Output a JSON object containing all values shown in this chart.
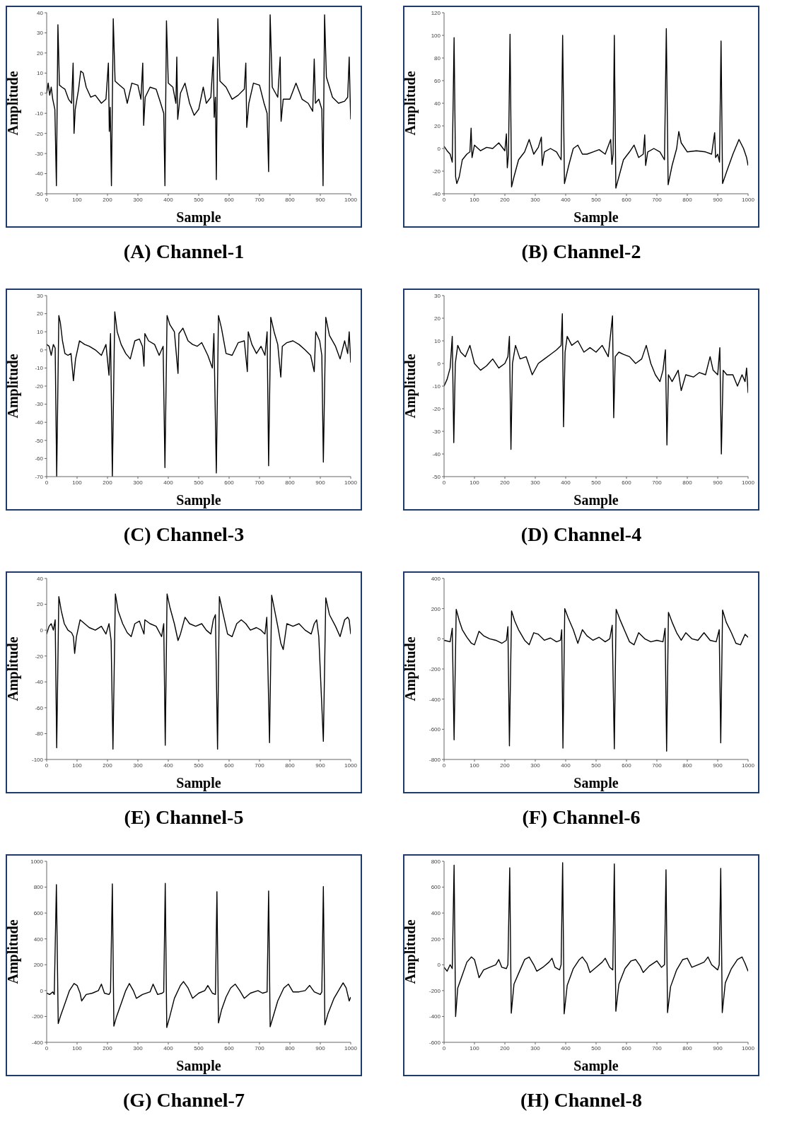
{
  "chart_data": [
    {
      "type": "line",
      "title": "(A) Channel-1",
      "xlabel": "Sample",
      "ylabel": "Amplitude",
      "color": "#000000",
      "xlim": [
        0,
        1000
      ],
      "xticks": [
        0,
        100,
        200,
        300,
        400,
        500,
        600,
        700,
        800,
        900,
        1000
      ],
      "ylim": [
        -50,
        40
      ],
      "yticks": [
        -50,
        -40,
        -30,
        -20,
        -10,
        0,
        10,
        20,
        30,
        40
      ],
      "x": [
        0,
        5,
        10,
        15,
        20,
        27,
        32,
        37,
        42,
        50,
        60,
        72,
        82,
        87,
        90,
        94,
        105,
        112,
        120,
        130,
        145,
        160,
        180,
        195,
        203,
        206,
        209,
        213,
        219,
        225,
        240,
        255,
        265,
        280,
        300,
        310,
        316,
        319,
        324,
        340,
        360,
        375,
        385,
        389,
        394,
        400,
        415,
        425,
        428,
        431,
        440,
        455,
        470,
        485,
        500,
        515,
        525,
        540,
        548,
        551,
        555,
        558,
        563,
        570,
        590,
        610,
        630,
        650,
        655,
        658,
        665,
        680,
        700,
        715,
        725,
        730,
        735,
        742,
        760,
        768,
        771,
        778,
        800,
        820,
        840,
        860,
        875,
        880,
        884,
        895,
        905,
        909,
        914,
        920,
        940,
        960,
        980,
        990,
        995,
        998,
        1000
      ],
      "values": [
        0,
        5,
        -1,
        3,
        -3,
        -8,
        -46,
        34,
        4,
        3,
        2,
        -3,
        -5,
        15,
        -20,
        -8,
        2,
        11,
        10,
        3,
        -2,
        -1,
        -5,
        -3,
        15,
        -19,
        -7,
        -46,
        37,
        6,
        4,
        2,
        -5,
        5,
        4,
        -3,
        15,
        -16,
        -2,
        3,
        2,
        -5,
        -10,
        -46,
        36,
        5,
        3,
        -5,
        18,
        -13,
        0,
        5,
        -5,
        -11,
        -8,
        3,
        -5,
        -2,
        18,
        -12,
        -2,
        -43,
        37,
        6,
        3,
        -3,
        -1,
        2,
        15,
        -17,
        -5,
        5,
        4,
        -5,
        -10,
        -39,
        39,
        3,
        -2,
        18,
        -14,
        -3,
        -3,
        5,
        -3,
        -5,
        -9,
        17,
        -5,
        -3,
        -8,
        -46,
        39,
        8,
        -2,
        -5,
        -4,
        -2,
        18,
        -2,
        -13
      ]
    },
    {
      "type": "line",
      "title": "(B) Channel-2",
      "xlabel": "Sample",
      "ylabel": "Amplitude",
      "color": "#000000",
      "xlim": [
        0,
        1000
      ],
      "xticks": [
        0,
        100,
        200,
        300,
        400,
        500,
        600,
        700,
        800,
        900,
        1000
      ],
      "ylim": [
        -40,
        120
      ],
      "yticks": [
        -40,
        -20,
        0,
        20,
        40,
        60,
        80,
        100,
        120
      ],
      "x": [
        0,
        10,
        20,
        27,
        33,
        38,
        42,
        50,
        60,
        75,
        85,
        89,
        92,
        100,
        120,
        140,
        160,
        180,
        200,
        205,
        208,
        212,
        217,
        222,
        230,
        245,
        265,
        280,
        295,
        310,
        320,
        323,
        330,
        350,
        370,
        385,
        390,
        396,
        410,
        425,
        440,
        455,
        470,
        490,
        510,
        530,
        548,
        552,
        556,
        560,
        565,
        575,
        590,
        610,
        625,
        640,
        655,
        660,
        663,
        670,
        690,
        710,
        725,
        731,
        737,
        750,
        765,
        772,
        780,
        800,
        830,
        860,
        880,
        890,
        893,
        900,
        906,
        911,
        916,
        930,
        950,
        970,
        985,
        995,
        1000
      ],
      "values": [
        2,
        -2,
        -5,
        -12,
        98,
        -25,
        -31,
        -25,
        -10,
        -5,
        -3,
        18,
        -8,
        3,
        -2,
        1,
        0,
        5,
        -2,
        13,
        -17,
        -5,
        101,
        -34,
        -25,
        -10,
        -3,
        8,
        -5,
        1,
        10,
        -15,
        -3,
        0,
        -3,
        -10,
        100,
        -31,
        -15,
        0,
        3,
        -5,
        -5,
        -3,
        -1,
        -5,
        8,
        -14,
        -5,
        100,
        -35,
        -25,
        -10,
        -3,
        3,
        -8,
        -5,
        12,
        -15,
        -3,
        0,
        -3,
        -10,
        106,
        -32,
        -15,
        0,
        15,
        5,
        -3,
        -2,
        -3,
        -5,
        14,
        -8,
        -5,
        -12,
        95,
        -31,
        -20,
        -5,
        8,
        0,
        -8,
        -15
      ]
    },
    {
      "type": "line",
      "title": "(C) Channel-3",
      "xlabel": "Sample",
      "ylabel": "Amplitude",
      "color": "#000000",
      "xlim": [
        0,
        1000
      ],
      "xticks": [
        0,
        100,
        200,
        300,
        400,
        500,
        600,
        700,
        800,
        900,
        1000
      ],
      "ylim": [
        -70,
        30
      ],
      "yticks": [
        -70,
        -60,
        -50,
        -40,
        -30,
        -20,
        -10,
        0,
        10,
        20,
        30
      ],
      "x": [
        0,
        8,
        15,
        22,
        28,
        33,
        40,
        45,
        52,
        60,
        70,
        80,
        88,
        95,
        108,
        125,
        140,
        160,
        180,
        195,
        205,
        210,
        216,
        224,
        232,
        245,
        260,
        275,
        290,
        305,
        315,
        320,
        323,
        335,
        355,
        370,
        383,
        389,
        396,
        405,
        420,
        432,
        435,
        448,
        465,
        480,
        495,
        510,
        530,
        545,
        550,
        558,
        565,
        575,
        590,
        610,
        630,
        650,
        660,
        663,
        675,
        690,
        705,
        718,
        725,
        730,
        737,
        748,
        760,
        770,
        775,
        790,
        810,
        830,
        850,
        868,
        880,
        885,
        898,
        905,
        910,
        918,
        930,
        950,
        965,
        980,
        990,
        995,
        1000
      ],
      "values": [
        3,
        2,
        -3,
        3,
        1,
        -70,
        19,
        15,
        5,
        -2,
        -3,
        -2,
        -17,
        -5,
        5,
        3,
        2,
        0,
        -3,
        3,
        -14,
        9,
        -70,
        21,
        10,
        3,
        -2,
        -5,
        5,
        6,
        2,
        -9,
        9,
        5,
        3,
        -3,
        2,
        -65,
        19,
        14,
        10,
        -13,
        9,
        12,
        5,
        3,
        2,
        4,
        -3,
        -10,
        9,
        -68,
        19,
        12,
        -2,
        -3,
        4,
        5,
        -12,
        10,
        3,
        -2,
        2,
        -3,
        10,
        -64,
        18,
        10,
        3,
        -15,
        2,
        4,
        5,
        3,
        0,
        -3,
        -12,
        10,
        5,
        -3,
        -62,
        18,
        8,
        2,
        -5,
        5,
        -2,
        10,
        -7
      ]
    },
    {
      "type": "line",
      "title": "(D) Channel-4",
      "xlabel": "Sample",
      "ylabel": "Amplitude",
      "color": "#000000",
      "xlim": [
        0,
        1000
      ],
      "xticks": [
        0,
        100,
        200,
        300,
        400,
        500,
        600,
        700,
        800,
        900,
        1000
      ],
      "ylim": [
        -50,
        30
      ],
      "yticks": [
        -50,
        -40,
        -30,
        -20,
        -10,
        0,
        10,
        20,
        30
      ],
      "x": [
        0,
        10,
        20,
        27,
        32,
        37,
        45,
        55,
        70,
        85,
        100,
        120,
        140,
        160,
        180,
        200,
        210,
        215,
        220,
        225,
        235,
        250,
        270,
        290,
        310,
        330,
        350,
        370,
        385,
        389,
        393,
        398,
        405,
        420,
        440,
        460,
        480,
        500,
        520,
        540,
        554,
        558,
        563,
        575,
        590,
        610,
        630,
        650,
        665,
        680,
        695,
        710,
        720,
        728,
        733,
        738,
        750,
        770,
        780,
        795,
        820,
        840,
        860,
        875,
        885,
        900,
        907,
        912,
        918,
        930,
        950,
        965,
        980,
        990,
        995,
        1000
      ],
      "values": [
        -10,
        -7,
        -2,
        12,
        -35,
        0,
        8,
        5,
        3,
        8,
        0,
        -3,
        -1,
        2,
        -2,
        0,
        3,
        12,
        -38,
        0,
        8,
        2,
        3,
        -5,
        0,
        2,
        4,
        6,
        8,
        22,
        -28,
        5,
        12,
        8,
        10,
        5,
        7,
        5,
        8,
        3,
        21,
        -24,
        3,
        5,
        4,
        3,
        0,
        2,
        8,
        0,
        -5,
        -8,
        -3,
        6,
        -36,
        -5,
        -8,
        -3,
        -12,
        -5,
        -6,
        -4,
        -5,
        3,
        -3,
        -5,
        7,
        -40,
        -3,
        -5,
        -5,
        -10,
        -5,
        -8,
        -2,
        -13
      ]
    },
    {
      "type": "line",
      "title": "(E) Channel-5",
      "xlabel": "Sample",
      "ylabel": "Amplitude",
      "color": "#000000",
      "xlim": [
        0,
        1000
      ],
      "xticks": [
        0,
        100,
        200,
        300,
        400,
        500,
        600,
        700,
        800,
        900,
        1000
      ],
      "ylim": [
        -100,
        40
      ],
      "yticks": [
        -100,
        -80,
        -60,
        -40,
        -20,
        0,
        20,
        40
      ],
      "x": [
        0,
        8,
        15,
        22,
        28,
        33,
        40,
        48,
        58,
        70,
        82,
        88,
        92,
        98,
        110,
        125,
        140,
        160,
        180,
        195,
        205,
        212,
        218,
        226,
        235,
        250,
        265,
        278,
        290,
        305,
        320,
        323,
        340,
        360,
        378,
        385,
        390,
        396,
        405,
        420,
        432,
        440,
        455,
        470,
        490,
        510,
        525,
        540,
        548,
        555,
        562,
        568,
        578,
        595,
        610,
        625,
        640,
        655,
        670,
        690,
        705,
        718,
        724,
        733,
        740,
        750,
        760,
        770,
        778,
        790,
        810,
        830,
        850,
        870,
        880,
        888,
        895,
        910,
        918,
        930,
        950,
        965,
        980,
        990,
        995,
        1000
      ],
      "values": [
        -3,
        3,
        5,
        0,
        8,
        -91,
        26,
        15,
        5,
        0,
        -2,
        -5,
        -18,
        -5,
        8,
        5,
        2,
        0,
        3,
        -3,
        5,
        -8,
        -92,
        28,
        15,
        5,
        -2,
        -5,
        5,
        7,
        -3,
        8,
        5,
        3,
        -5,
        5,
        -89,
        28,
        18,
        5,
        -8,
        -3,
        10,
        5,
        3,
        5,
        0,
        -3,
        8,
        12,
        -92,
        26,
        15,
        -3,
        -5,
        5,
        8,
        5,
        0,
        2,
        0,
        -3,
        10,
        -87,
        27,
        15,
        3,
        -10,
        -15,
        5,
        3,
        5,
        0,
        -3,
        5,
        8,
        -5,
        -86,
        25,
        12,
        3,
        -5,
        8,
        10,
        8,
        -3
      ]
    },
    {
      "type": "line",
      "title": "(F) Channel-6",
      "xlabel": "Sample",
      "ylabel": "Amplitude",
      "color": "#000000",
      "xlim": [
        0,
        1000
      ],
      "xticks": [
        0,
        100,
        200,
        300,
        400,
        500,
        600,
        700,
        800,
        900,
        1000
      ],
      "ylim": [
        -800,
        400
      ],
      "yticks": [
        -800,
        -600,
        -400,
        -200,
        0,
        200,
        400
      ],
      "x": [
        0,
        10,
        20,
        27,
        33,
        40,
        50,
        60,
        75,
        90,
        100,
        115,
        130,
        150,
        170,
        190,
        205,
        210,
        215,
        222,
        232,
        245,
        265,
        280,
        295,
        310,
        330,
        350,
        370,
        383,
        387,
        391,
        397,
        408,
        425,
        440,
        455,
        470,
        490,
        510,
        530,
        545,
        553,
        560,
        566,
        578,
        595,
        610,
        625,
        640,
        660,
        680,
        700,
        720,
        727,
        732,
        738,
        750,
        765,
        780,
        795,
        815,
        835,
        855,
        875,
        895,
        905,
        910,
        916,
        928,
        945,
        960,
        975,
        990,
        1000
      ],
      "values": [
        -10,
        -15,
        -20,
        70,
        -670,
        195,
        120,
        60,
        10,
        -30,
        -40,
        50,
        20,
        0,
        -10,
        -30,
        -10,
        80,
        -710,
        185,
        120,
        60,
        -10,
        -40,
        40,
        30,
        -10,
        5,
        -20,
        -10,
        60,
        -725,
        200,
        140,
        60,
        -30,
        60,
        20,
        -10,
        10,
        -20,
        0,
        90,
        -730,
        195,
        130,
        50,
        -20,
        -40,
        40,
        0,
        -20,
        -10,
        -20,
        70,
        -745,
        175,
        110,
        40,
        -10,
        40,
        0,
        -10,
        40,
        -10,
        -20,
        60,
        -690,
        190,
        110,
        40,
        -30,
        -40,
        30,
        10
      ]
    },
    {
      "type": "line",
      "title": "(G) Channel-7",
      "xlabel": "Sample",
      "ylabel": "Amplitude",
      "color": "#000000",
      "xlim": [
        0,
        1000
      ],
      "xticks": [
        0,
        100,
        200,
        300,
        400,
        500,
        600,
        700,
        800,
        900,
        1000
      ],
      "ylim": [
        -400,
        1000
      ],
      "yticks": [
        -400,
        -200,
        0,
        200,
        400,
        600,
        800,
        1000
      ],
      "x": [
        0,
        10,
        20,
        25,
        32,
        38,
        45,
        60,
        75,
        90,
        100,
        110,
        115,
        130,
        150,
        170,
        180,
        190,
        205,
        210,
        216,
        221,
        230,
        245,
        260,
        272,
        285,
        295,
        315,
        340,
        350,
        365,
        380,
        385,
        390,
        395,
        405,
        420,
        440,
        450,
        465,
        480,
        500,
        520,
        530,
        545,
        555,
        560,
        565,
        575,
        590,
        605,
        620,
        635,
        650,
        670,
        695,
        710,
        725,
        730,
        735,
        745,
        760,
        780,
        795,
        810,
        830,
        850,
        865,
        880,
        900,
        905,
        910,
        915,
        925,
        945,
        965,
        975,
        985,
        995,
        1000
      ],
      "values": [
        -20,
        -30,
        -10,
        -30,
        820,
        -255,
        -200,
        -100,
        0,
        55,
        40,
        -20,
        -80,
        -30,
        -20,
        0,
        50,
        -20,
        -30,
        -10,
        825,
        -275,
        -200,
        -100,
        0,
        55,
        0,
        -60,
        -30,
        -10,
        50,
        -30,
        -20,
        -10,
        830,
        -285,
        -200,
        -60,
        40,
        70,
        20,
        -60,
        -20,
        0,
        40,
        -20,
        -30,
        765,
        -250,
        -150,
        -50,
        20,
        50,
        0,
        -60,
        -20,
        0,
        -20,
        -10,
        770,
        -280,
        -200,
        -80,
        20,
        50,
        -10,
        -10,
        0,
        40,
        -10,
        -30,
        -10,
        805,
        -265,
        -180,
        -60,
        20,
        60,
        20,
        -80,
        -50
      ]
    },
    {
      "type": "line",
      "title": "(H) Channel-8",
      "xlabel": "Sample",
      "ylabel": "Amplitude",
      "color": "#000000",
      "xlim": [
        0,
        1000
      ],
      "xticks": [
        0,
        100,
        200,
        300,
        400,
        500,
        600,
        700,
        800,
        900,
        1000
      ],
      "ylim": [
        -600,
        800
      ],
      "yticks": [
        -600,
        -400,
        -200,
        0,
        200,
        400,
        600,
        800
      ],
      "x": [
        0,
        10,
        20,
        27,
        33,
        38,
        45,
        60,
        75,
        90,
        100,
        110,
        115,
        130,
        150,
        170,
        180,
        190,
        205,
        210,
        216,
        221,
        230,
        250,
        265,
        280,
        295,
        305,
        325,
        345,
        355,
        365,
        380,
        385,
        390,
        395,
        405,
        425,
        445,
        455,
        470,
        480,
        500,
        520,
        530,
        545,
        555,
        560,
        565,
        575,
        595,
        615,
        630,
        645,
        655,
        675,
        700,
        715,
        725,
        730,
        735,
        745,
        765,
        785,
        800,
        815,
        835,
        855,
        868,
        880,
        900,
        905,
        910,
        915,
        925,
        945,
        965,
        980,
        990,
        1000
      ],
      "values": [
        -20,
        -50,
        0,
        -30,
        770,
        -400,
        -180,
        -80,
        20,
        60,
        40,
        -50,
        -100,
        -40,
        -20,
        0,
        40,
        -20,
        -30,
        0,
        750,
        -375,
        -150,
        -40,
        40,
        60,
        0,
        -50,
        -20,
        20,
        50,
        -20,
        -40,
        0,
        790,
        -380,
        -160,
        -30,
        40,
        60,
        10,
        -60,
        -20,
        20,
        50,
        -20,
        -40,
        780,
        -360,
        -150,
        -30,
        30,
        40,
        -10,
        -60,
        -10,
        30,
        -20,
        0,
        735,
        -370,
        -170,
        -40,
        40,
        50,
        -20,
        0,
        20,
        60,
        0,
        -40,
        0,
        745,
        -370,
        -140,
        -30,
        40,
        60,
        10,
        -50
      ]
    }
  ]
}
